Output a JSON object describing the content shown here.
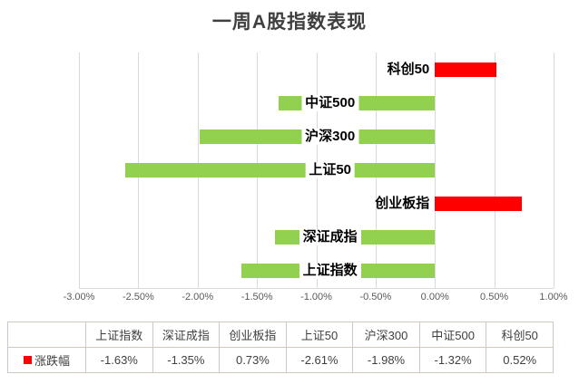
{
  "chart_data": {
    "type": "bar",
    "orientation": "horizontal",
    "title": "一周A股指数表现",
    "series_name": "涨跌幅",
    "categories_top_to_bottom": [
      "科创50",
      "中证500",
      "沪深300",
      "上证50",
      "创业板指",
      "深证成指",
      "上证指数"
    ],
    "values": [
      0.52,
      -1.32,
      -1.98,
      -2.61,
      0.73,
      -1.35,
      -1.63
    ],
    "value_unit": "%",
    "xlim": [
      -3.0,
      1.0
    ],
    "x_ticks": [
      "-3.00%",
      "-2.50%",
      "-2.00%",
      "-1.50%",
      "-1.00%",
      "-0.50%",
      "0.00%",
      "0.50%",
      "1.00%"
    ],
    "grid": true,
    "legend_position": "bottom-table",
    "colors": {
      "positive_bar": "#ff0000",
      "negative_bar": "#92d050",
      "gridline": "#d9d9d9",
      "title_text": "#3f3f3f"
    }
  },
  "data_table": {
    "row_label": "涨跌幅",
    "legend_color": "#ff0000",
    "columns": [
      "上证指数",
      "深证成指",
      "创业板指",
      "上证50",
      "沪深300",
      "中证500",
      "科创50"
    ],
    "values": [
      "-1.63%",
      "-1.35%",
      "0.73%",
      "-2.61%",
      "-1.98%",
      "-1.32%",
      "0.52%"
    ]
  }
}
